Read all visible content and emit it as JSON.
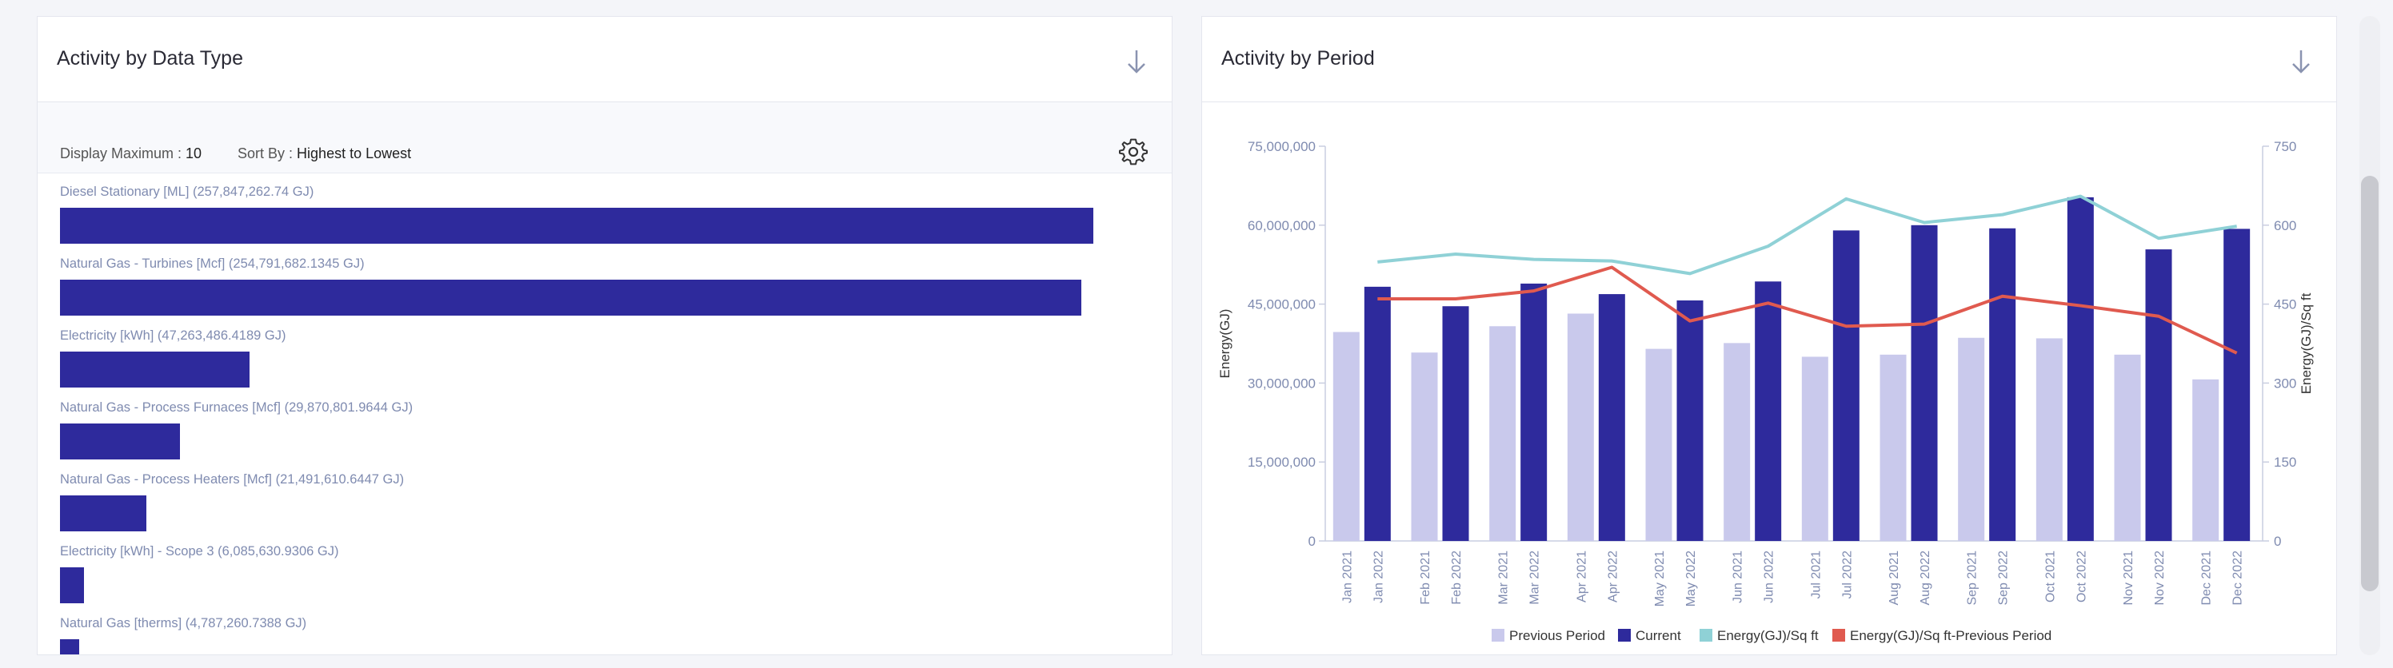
{
  "left_panel": {
    "title": "Activity by Data Type",
    "display_max_label": "Display Maximum :",
    "display_max_value": "10",
    "sort_label": "Sort By :",
    "sort_value": "Highest to Lowest",
    "icons": {
      "download": "download-icon",
      "settings": "gear-icon"
    }
  },
  "right_panel": {
    "title": "Activity by Period",
    "icons": {
      "download": "download-icon"
    }
  },
  "chart_data": [
    {
      "type": "bar",
      "orientation": "horizontal",
      "unit": "GJ",
      "items": [
        {
          "label": "Diesel Stationary [ML] (257,847,262.74 GJ)",
          "value": 257847262.74
        },
        {
          "label": "Natural Gas - Turbines [Mcf] (254,791,682.1345 GJ)",
          "value": 254791682.1345
        },
        {
          "label": "Electricity [kWh] (47,263,486.4189 GJ)",
          "value": 47263486.4189
        },
        {
          "label": "Natural Gas - Process Furnaces [Mcf] (29,870,801.9644 GJ)",
          "value": 29870801.9644
        },
        {
          "label": "Natural Gas - Process Heaters [Mcf] (21,491,610.6447 GJ)",
          "value": 21491610.6447
        },
        {
          "label": "Electricity [kWh] - Scope 3 (6,085,630.9306 GJ)",
          "value": 6085630.9306
        },
        {
          "label": "Natural Gas [therms] (4,787,260.7388 GJ)",
          "value": 4787260.7388
        }
      ],
      "colors": {
        "bar": "#2e2a9c"
      }
    },
    {
      "type": "bar",
      "ylabel": "Energy(GJ)",
      "y2label": "Energy(GJ)/Sq ft",
      "ylim": [
        0,
        75000000
      ],
      "y2lim": [
        0,
        750
      ],
      "yticks": [
        "0",
        "15,000,000",
        "30,000,000",
        "45,000,000",
        "60,000,000",
        "75,000,000"
      ],
      "y2ticks": [
        "0",
        "150",
        "300",
        "450",
        "600",
        "750"
      ],
      "periods": [
        {
          "prev": "Jan 2021",
          "cur": "Jan 2022"
        },
        {
          "prev": "Feb 2021",
          "cur": "Feb 2022"
        },
        {
          "prev": "Mar 2021",
          "cur": "Mar 2022"
        },
        {
          "prev": "Apr 2021",
          "cur": "Apr 2022"
        },
        {
          "prev": "May 2021",
          "cur": "May 2022"
        },
        {
          "prev": "Jun 2021",
          "cur": "Jun 2022"
        },
        {
          "prev": "Jul 2021",
          "cur": "Jul 2022"
        },
        {
          "prev": "Aug 2021",
          "cur": "Aug 2022"
        },
        {
          "prev": "Sep 2021",
          "cur": "Sep 2022"
        },
        {
          "prev": "Oct 2021",
          "cur": "Oct 2022"
        },
        {
          "prev": "Nov 2021",
          "cur": "Nov 2022"
        },
        {
          "prev": "Dec 2021",
          "cur": "Dec 2022"
        }
      ],
      "series": [
        {
          "name": "Previous Period",
          "kind": "bar",
          "axis": "left",
          "color": "#c9c9ec",
          "values": [
            39700000,
            35800000,
            40800000,
            43200000,
            36500000,
            37600000,
            35000000,
            35400000,
            38600000,
            38500000,
            35400000,
            30700000
          ]
        },
        {
          "name": "Current",
          "kind": "bar",
          "axis": "left",
          "color": "#2e2a9c",
          "values": [
            48300000,
            44600000,
            48900000,
            46900000,
            45700000,
            49300000,
            59000000,
            60000000,
            59400000,
            65300000,
            55400000,
            59300000
          ]
        },
        {
          "name": "Energy(GJ)/Sq ft",
          "kind": "line",
          "axis": "right",
          "color": "#8fd1d6",
          "values": [
            530,
            545,
            535,
            532,
            508,
            560,
            650,
            605,
            620,
            655,
            575,
            598
          ]
        },
        {
          "name": "Energy(GJ)/Sq ft-Previous Period",
          "kind": "line",
          "axis": "right",
          "color": "#e05a4f",
          "values": [
            460,
            460,
            475,
            520,
            418,
            452,
            408,
            412,
            465,
            447,
            427,
            357
          ]
        }
      ],
      "legend": "bottom-center",
      "grid": false
    }
  ]
}
